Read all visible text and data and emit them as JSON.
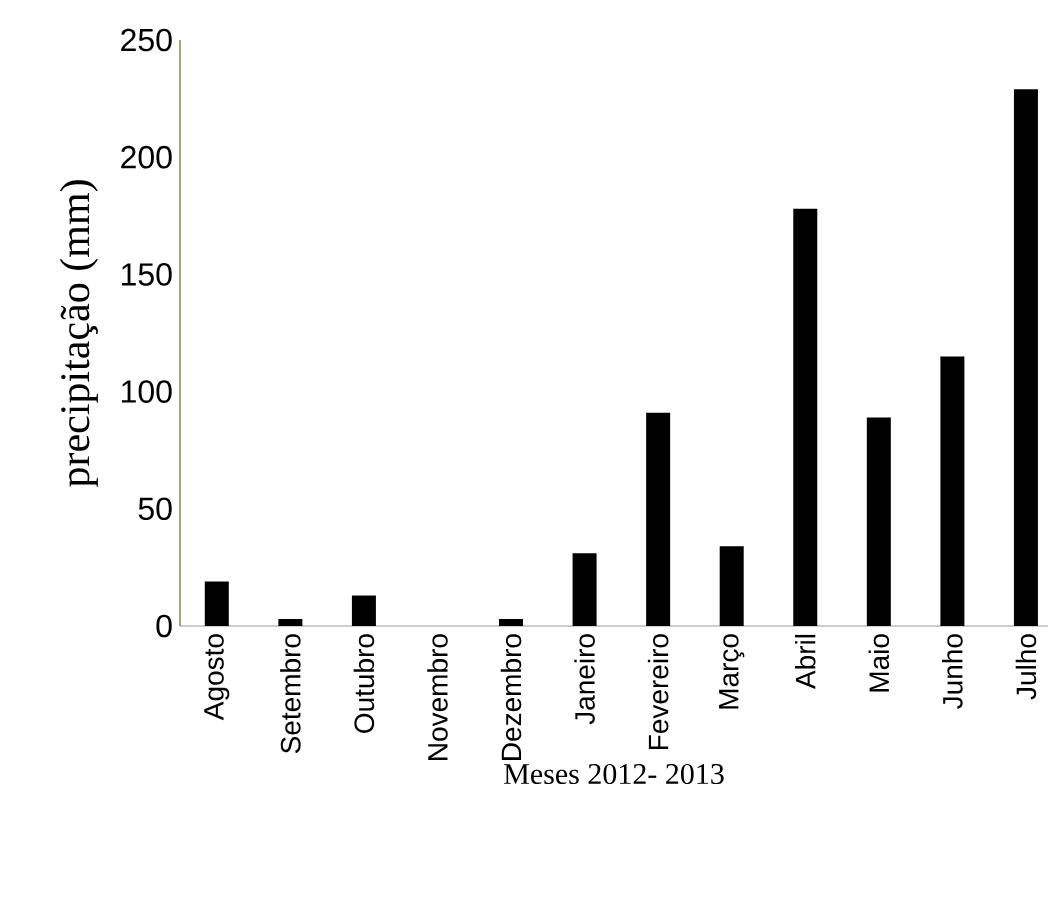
{
  "chart_data": {
    "type": "bar",
    "xlabel": "Meses 2012- 2013",
    "ylabel": "precipitação (mm)",
    "categories": [
      "Agosto",
      "Setembro",
      "Outubro",
      "Novembro",
      "Dezembro",
      "Janeiro",
      "Fevereiro",
      "Março",
      "Abril",
      "Maio",
      "Junho",
      "Julho"
    ],
    "values": [
      19,
      3,
      13,
      0,
      3,
      31,
      91,
      34,
      178,
      89,
      115,
      229
    ],
    "color": "#000000",
    "ylim": [
      0,
      250
    ],
    "yticks": [
      0,
      50,
      100,
      150,
      200,
      250
    ]
  }
}
